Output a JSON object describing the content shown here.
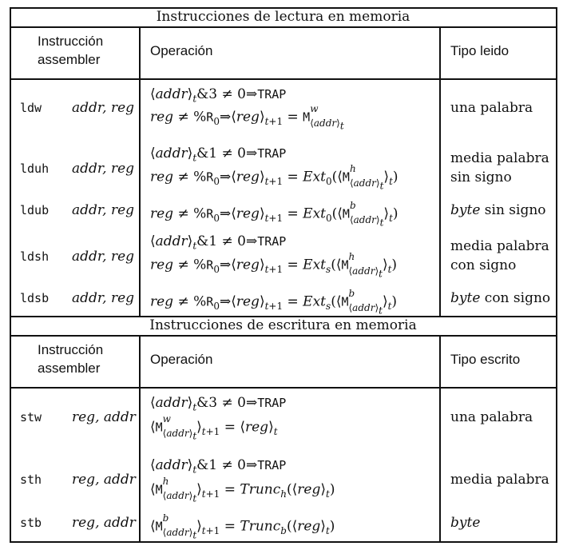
{
  "read_section": {
    "title": "Instrucciones de lectura en memoria",
    "headers": {
      "instruction": [
        "Instrucción",
        "assembler"
      ],
      "operation": "Operación",
      "type": "Tipo leido"
    },
    "rows": [
      {
        "mnemonic": "ldw",
        "args": "addr, reg",
        "ops": [
          "⟨addr⟩_t&3 ≠ 0⇒TRAP",
          "reg ≠ %R0⇒⟨reg⟩_{t+1} = M^w_⟨addr⟩_t"
        ],
        "type": [
          "una palabra"
        ]
      },
      {
        "mnemonic": "lduh",
        "args": "addr, reg",
        "ops": [
          "⟨addr⟩_t&1 ≠ 0⇒TRAP",
          "reg ≠ %R0⇒⟨reg⟩_{t+1} = Ext0(⟨M^h_⟨addr⟩_t⟩_t)"
        ],
        "type": [
          "media palabra",
          "sin signo"
        ]
      },
      {
        "mnemonic": "ldub",
        "args": "addr, reg",
        "ops": [
          "reg ≠ %R0⇒⟨reg⟩_{t+1} = Ext0(⟨M^b_⟨addr⟩_t⟩_t)"
        ],
        "type": [
          "byte sin signo"
        ]
      },
      {
        "mnemonic": "ldsh",
        "args": "addr, reg",
        "ops": [
          "⟨addr⟩_t&1 ≠ 0⇒TRAP",
          "reg ≠ %R0⇒⟨reg⟩_{t+1} = Exts(⟨M^h_⟨addr⟩_t⟩_t)"
        ],
        "type": [
          "media palabra",
          "con signo"
        ]
      },
      {
        "mnemonic": "ldsb",
        "args": "addr, reg",
        "ops": [
          "reg ≠ %R0⇒⟨reg⟩_{t+1} = Exts(⟨M^b_⟨addr⟩_t⟩_t)"
        ],
        "type": [
          "byte con signo"
        ]
      }
    ]
  },
  "write_section": {
    "title": "Instrucciones de escritura en memoria",
    "headers": {
      "instruction": [
        "Instrucción",
        "assembler"
      ],
      "operation": "Operación",
      "type": "Tipo escrito"
    },
    "rows": [
      {
        "mnemonic": "stw",
        "args": "reg, addr",
        "ops": [
          "⟨addr⟩_t&3 ≠ 0⇒TRAP",
          "⟨M^w_⟨addr⟩_t⟩_{t+1} = ⟨reg⟩_t"
        ],
        "type": [
          "una palabra"
        ]
      },
      {
        "mnemonic": "sth",
        "args": "reg, addr",
        "ops": [
          "⟨addr⟩_t&1 ≠ 0⇒TRAP",
          "⟨M^h_⟨addr⟩_t⟩_{t+1} = Trunc_h(⟨reg⟩_t)"
        ],
        "type": [
          "media palabra"
        ]
      },
      {
        "mnemonic": "stb",
        "args": "reg, addr",
        "ops": [
          "⟨M^b_⟨addr⟩_t⟩_{t+1} = Trunc_b(⟨reg⟩_t)"
        ],
        "type": [
          "byte"
        ]
      }
    ]
  }
}
